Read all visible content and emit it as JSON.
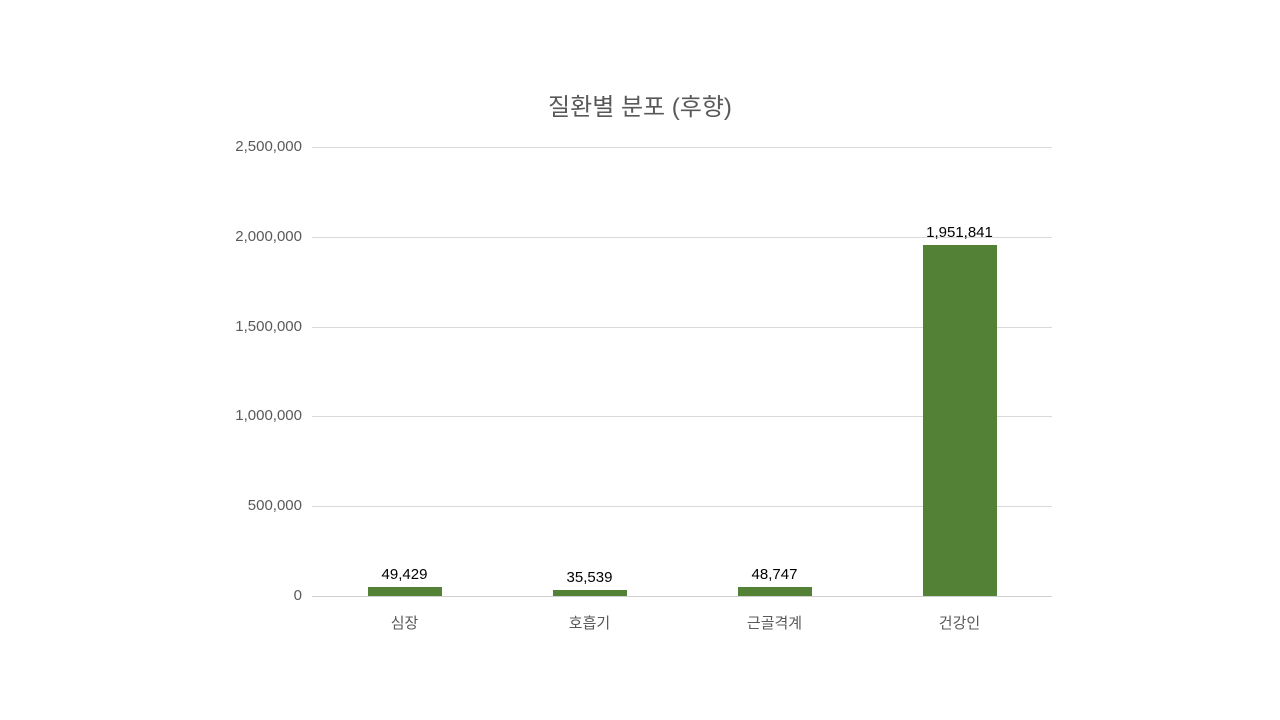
{
  "chart": {
    "title": "질환별 분포 (후향)",
    "bar_color": "#538135",
    "grid_color": "#d9d9d9",
    "text_color": "#595959"
  },
  "axes": {
    "y_ticks": [
      "0",
      "500,000",
      "1,000,000",
      "1,500,000",
      "2,000,000",
      "2,500,000"
    ],
    "x_ticks": [
      "심장",
      "호흡기",
      "근골격계",
      "건강인"
    ]
  },
  "bars": [
    {
      "category": "심장",
      "value": 49429,
      "label": "49,429"
    },
    {
      "category": "호흡기",
      "value": 35539,
      "label": "35,539"
    },
    {
      "category": "근골격계",
      "value": 48747,
      "label": "48,747"
    },
    {
      "category": "건강인",
      "value": 1951841,
      "label": "1,951,841"
    }
  ],
  "chart_data": {
    "type": "bar",
    "title": "질환별 분포 (후향)",
    "categories": [
      "심장",
      "호흡기",
      "근골격계",
      "건강인"
    ],
    "values": [
      49429,
      35539,
      48747,
      1951841
    ],
    "data_labels": [
      "49,429",
      "35,539",
      "48,747",
      "1,951,841"
    ],
    "xlabel": "",
    "ylabel": "",
    "ylim": [
      0,
      2500000
    ],
    "y_ticks": [
      0,
      500000,
      1000000,
      1500000,
      2000000,
      2500000
    ],
    "grid": true,
    "legend": null,
    "series": [
      {
        "name": "",
        "values": [
          49429,
          35539,
          48747,
          1951841
        ],
        "color": "#538135"
      }
    ]
  }
}
